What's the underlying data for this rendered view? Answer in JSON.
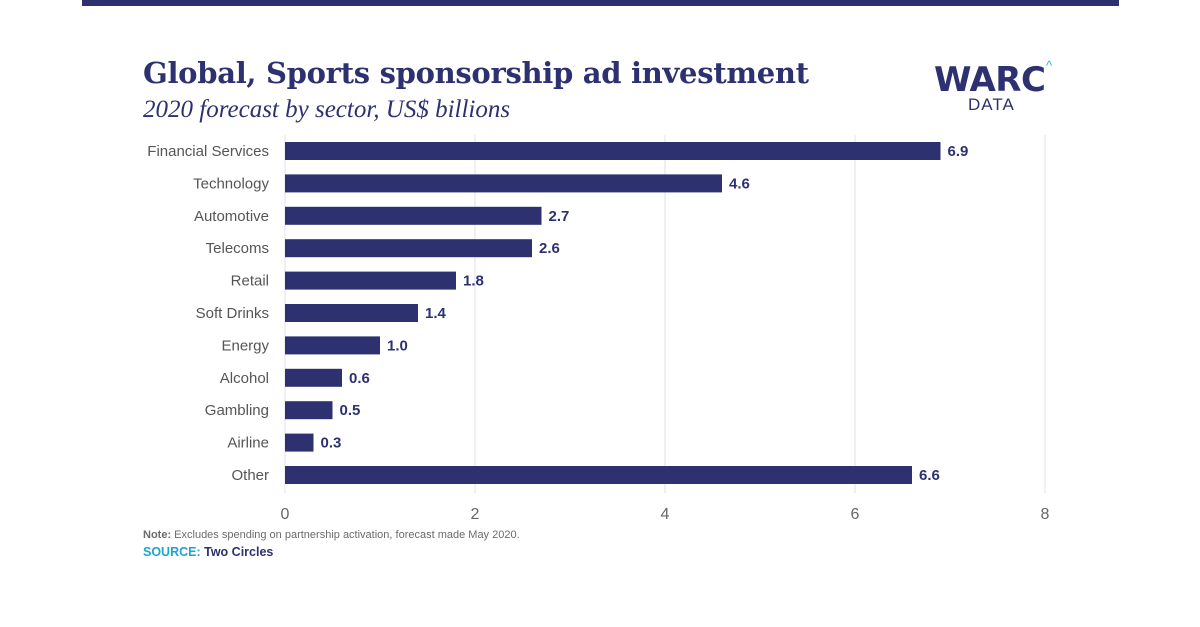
{
  "header": {
    "title": "Global, Sports sponsorship ad investment",
    "subtitle": "2020 forecast by sector, US$ billions"
  },
  "logo": {
    "brand": "WARC",
    "caret": "^",
    "sub": "DATA"
  },
  "colors": {
    "bar": "#2d3170",
    "grid": "#dfe1ea",
    "label": "#555555",
    "tick": "#666666",
    "source": "#1fa3d1"
  },
  "chart_data": {
    "type": "bar",
    "orientation": "horizontal",
    "title": "Global, Sports sponsorship ad investment",
    "subtitle": "2020 forecast by sector, US$ billions",
    "categories": [
      "Financial Services",
      "Technology",
      "Automotive",
      "Telecoms",
      "Retail",
      "Soft Drinks",
      "Energy",
      "Alcohol",
      "Gambling",
      "Airline",
      "Other"
    ],
    "values": [
      6.9,
      4.6,
      2.7,
      2.6,
      1.8,
      1.4,
      1.0,
      0.6,
      0.5,
      0.3,
      6.6
    ],
    "value_labels": [
      "6.9",
      "4.6",
      "2.7",
      "2.6",
      "1.8",
      "1.4",
      "1.0",
      "0.6",
      "0.5",
      "0.3",
      "6.6"
    ],
    "xlim": [
      0,
      8
    ],
    "xticks": [
      0,
      2,
      4,
      6,
      8
    ],
    "xlabel": "",
    "ylabel": "",
    "grid": true
  },
  "footer": {
    "note_label": "Note:",
    "note_text": " Excludes spending on partnership activation, forecast made May 2020.",
    "source_label": "SOURCE:",
    "source_text": " Two Circles"
  }
}
